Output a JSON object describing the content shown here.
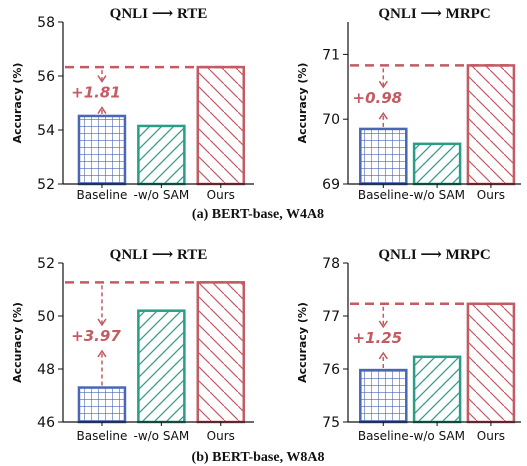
{
  "captions": [
    "(a) BERT-base, W4A8",
    "(b) BERT-base, W8A8"
  ],
  "colors": {
    "baseline": "#4a67b5",
    "wo_sam": "#2a9d86",
    "ours": "#c45a62",
    "arrow": "#c45a62"
  },
  "chart_data": [
    {
      "type": "bar",
      "title": "QNLI ⟶ RTE",
      "ylabel": "Accuracy (%)",
      "categories": [
        "Baseline",
        "-w/o SAM",
        "Ours"
      ],
      "values": [
        54.52,
        54.15,
        56.33
      ],
      "ylim": [
        52,
        58
      ],
      "yticks": [
        52,
        54,
        56,
        58
      ],
      "annotation": "+1.81",
      "reference_line": 56.33,
      "grid": false
    },
    {
      "type": "bar",
      "title": "QNLI ⟶ MRPC",
      "ylabel": "Accuracy (%)",
      "categories": [
        "Baseline",
        "-w/o SAM",
        "Ours"
      ],
      "values": [
        69.85,
        69.62,
        70.83
      ],
      "ylim": [
        69,
        71.5
      ],
      "yticks": [
        69,
        70,
        71
      ],
      "annotation": "+0.98",
      "reference_line": 70.83,
      "grid": false
    },
    {
      "type": "bar",
      "title": "QNLI ⟶ RTE",
      "ylabel": "Accuracy (%)",
      "categories": [
        "Baseline",
        "-w/o SAM",
        "Ours"
      ],
      "values": [
        47.3,
        50.2,
        51.27
      ],
      "ylim": [
        46,
        52
      ],
      "yticks": [
        46,
        48,
        50,
        52
      ],
      "annotation": "+3.97",
      "reference_line": 51.27,
      "grid": false
    },
    {
      "type": "bar",
      "title": "QNLI ⟶ MRPC",
      "ylabel": "Accuracy (%)",
      "categories": [
        "Baseline",
        "-w/o SAM",
        "Ours"
      ],
      "values": [
        75.98,
        76.23,
        77.23
      ],
      "ylim": [
        75,
        78
      ],
      "yticks": [
        75,
        76,
        77,
        78
      ],
      "annotation": "+1.25",
      "reference_line": 77.23,
      "grid": false
    }
  ]
}
